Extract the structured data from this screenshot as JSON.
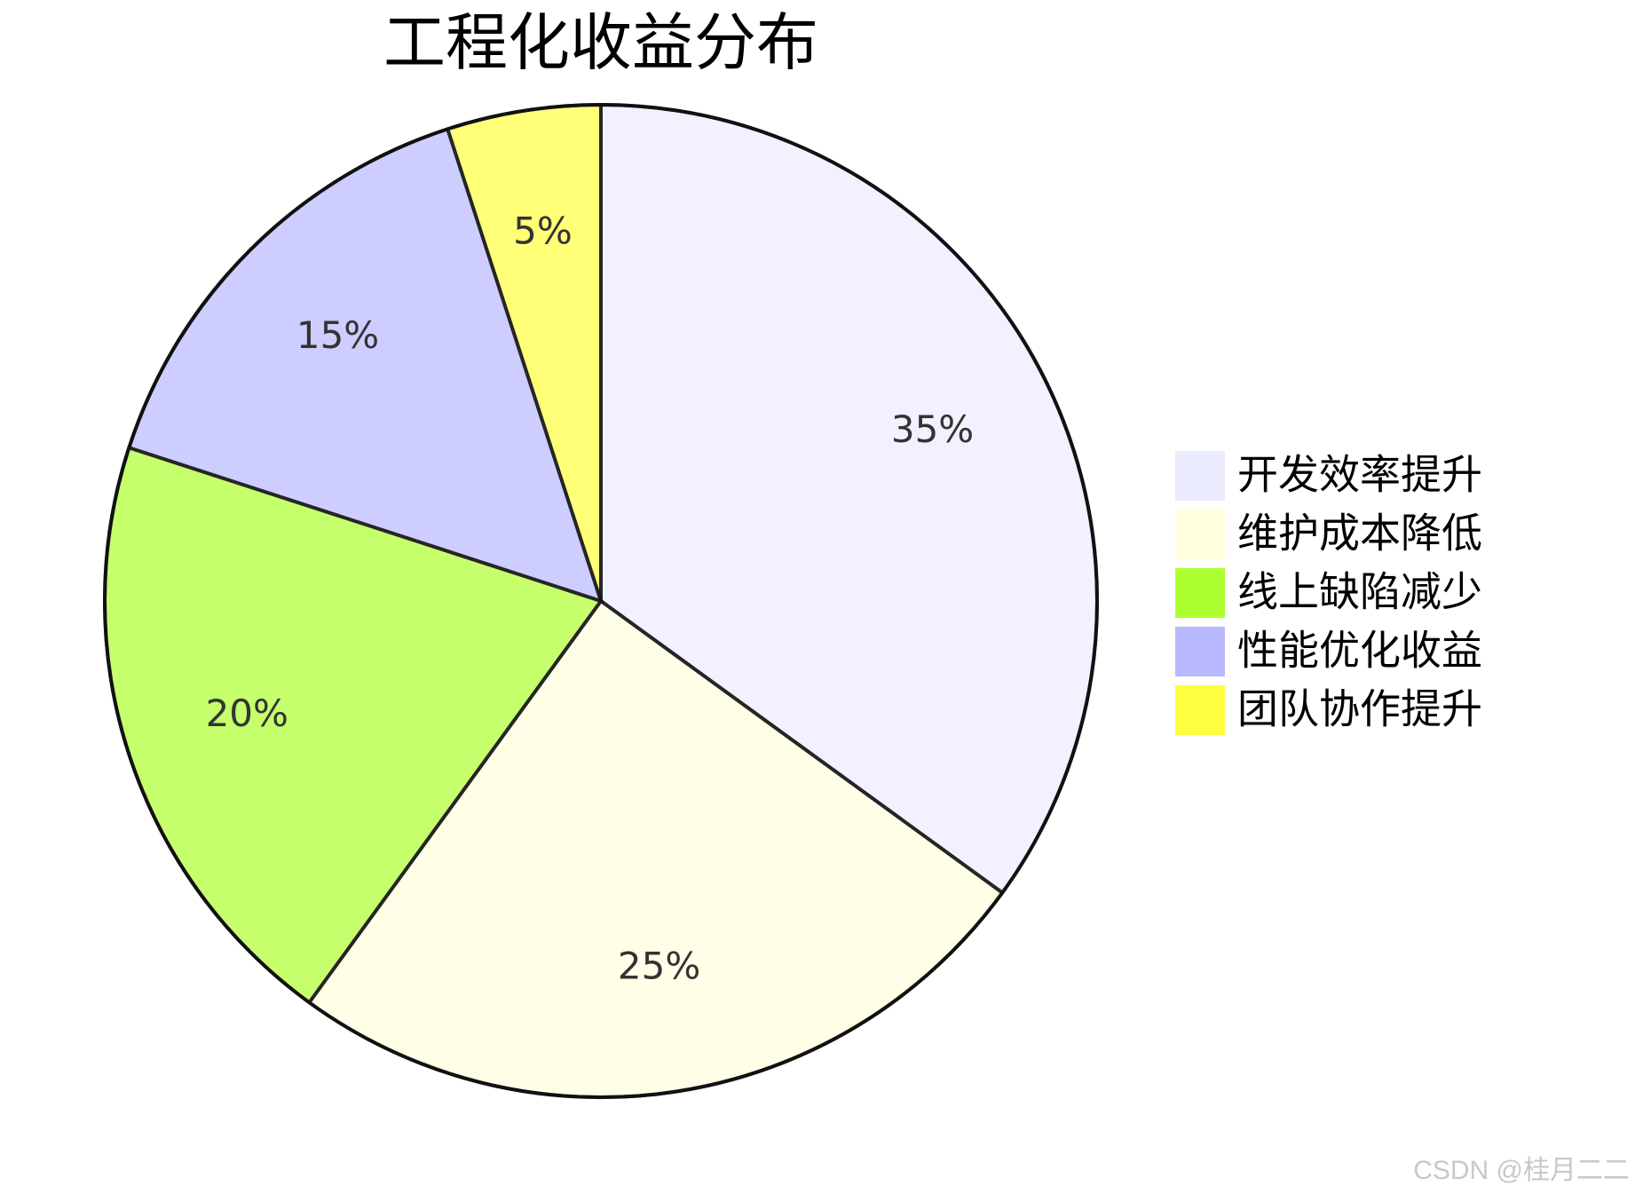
{
  "chart_data": {
    "type": "pie",
    "title": "工程化收益分布",
    "series": [
      {
        "name": "开发效率提升",
        "color": "#ECECFF",
        "values": [
          35
        ],
        "value_labels": [
          "35%"
        ]
      },
      {
        "name": "维护成本降低",
        "color": "#FFFFDE",
        "values": [
          25
        ],
        "value_labels": [
          "25%"
        ]
      },
      {
        "name": "线上缺陷减少",
        "color": "#ADFF2F",
        "values": [
          20
        ],
        "value_labels": [
          "20%"
        ]
      },
      {
        "name": "性能优化收益",
        "color": "#B9B9FF",
        "values": [
          15
        ],
        "value_labels": [
          "15%"
        ]
      },
      {
        "name": "团队协作提升",
        "color": "#FFFF40",
        "values": [
          5
        ],
        "value_labels": [
          "5%"
        ]
      }
    ],
    "legend": "right",
    "watermark": "CSDN @桂月二二"
  }
}
